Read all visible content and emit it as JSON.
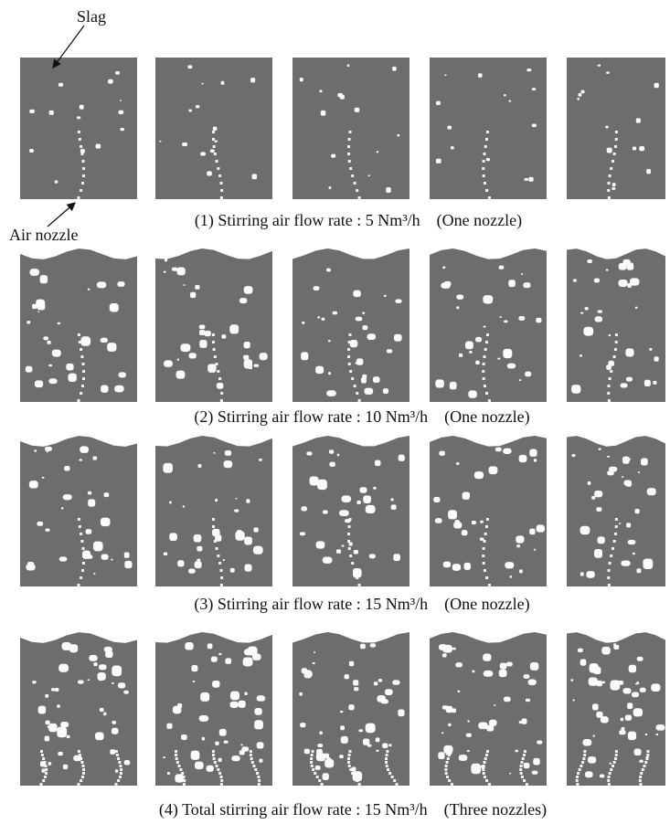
{
  "labels": {
    "slag": "Slag",
    "air_nozzle": "Air nozzle"
  },
  "rows": [
    {
      "caption": "(1) Stirring air flow rate : 5 Nm³/h　(One nozzle)"
    },
    {
      "caption": "(2) Stirring air flow rate : 10 Nm³/h　(One nozzle)"
    },
    {
      "caption": "(3) Stirring air flow rate : 15 Nm³/h　(One nozzle)"
    },
    {
      "caption": "(4) Total stirring air flow rate : 15 Nm³/h　(Three nozzles)"
    }
  ]
}
